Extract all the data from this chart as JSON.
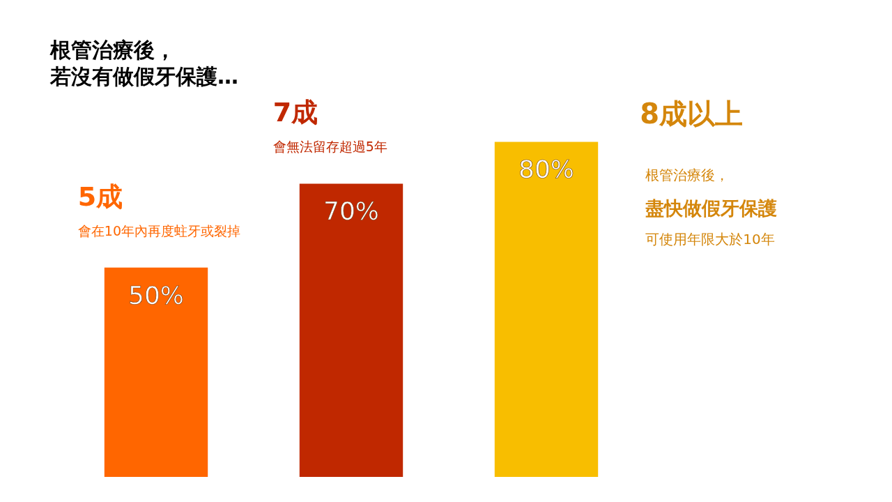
{
  "chart_data": {
    "type": "bar",
    "title": "根管治療後，",
    "subtitle": "若沒有做假牙保護…",
    "categories": [
      null,
      null,
      null
    ],
    "values": [
      50,
      70,
      80
    ],
    "colors": [
      "#ff6600",
      "#c02800",
      "#f8be00"
    ],
    "value_labels": [
      "50%",
      "70%",
      "80%"
    ],
    "annotations": [
      "5成",
      "會在10年內再度蛀牙或裂掉",
      "7成",
      "會無法留存超過5年",
      "8成以上",
      "根管治療後，",
      "盡快做假牙保護",
      "可使用年限大於10年"
    ]
  }
}
